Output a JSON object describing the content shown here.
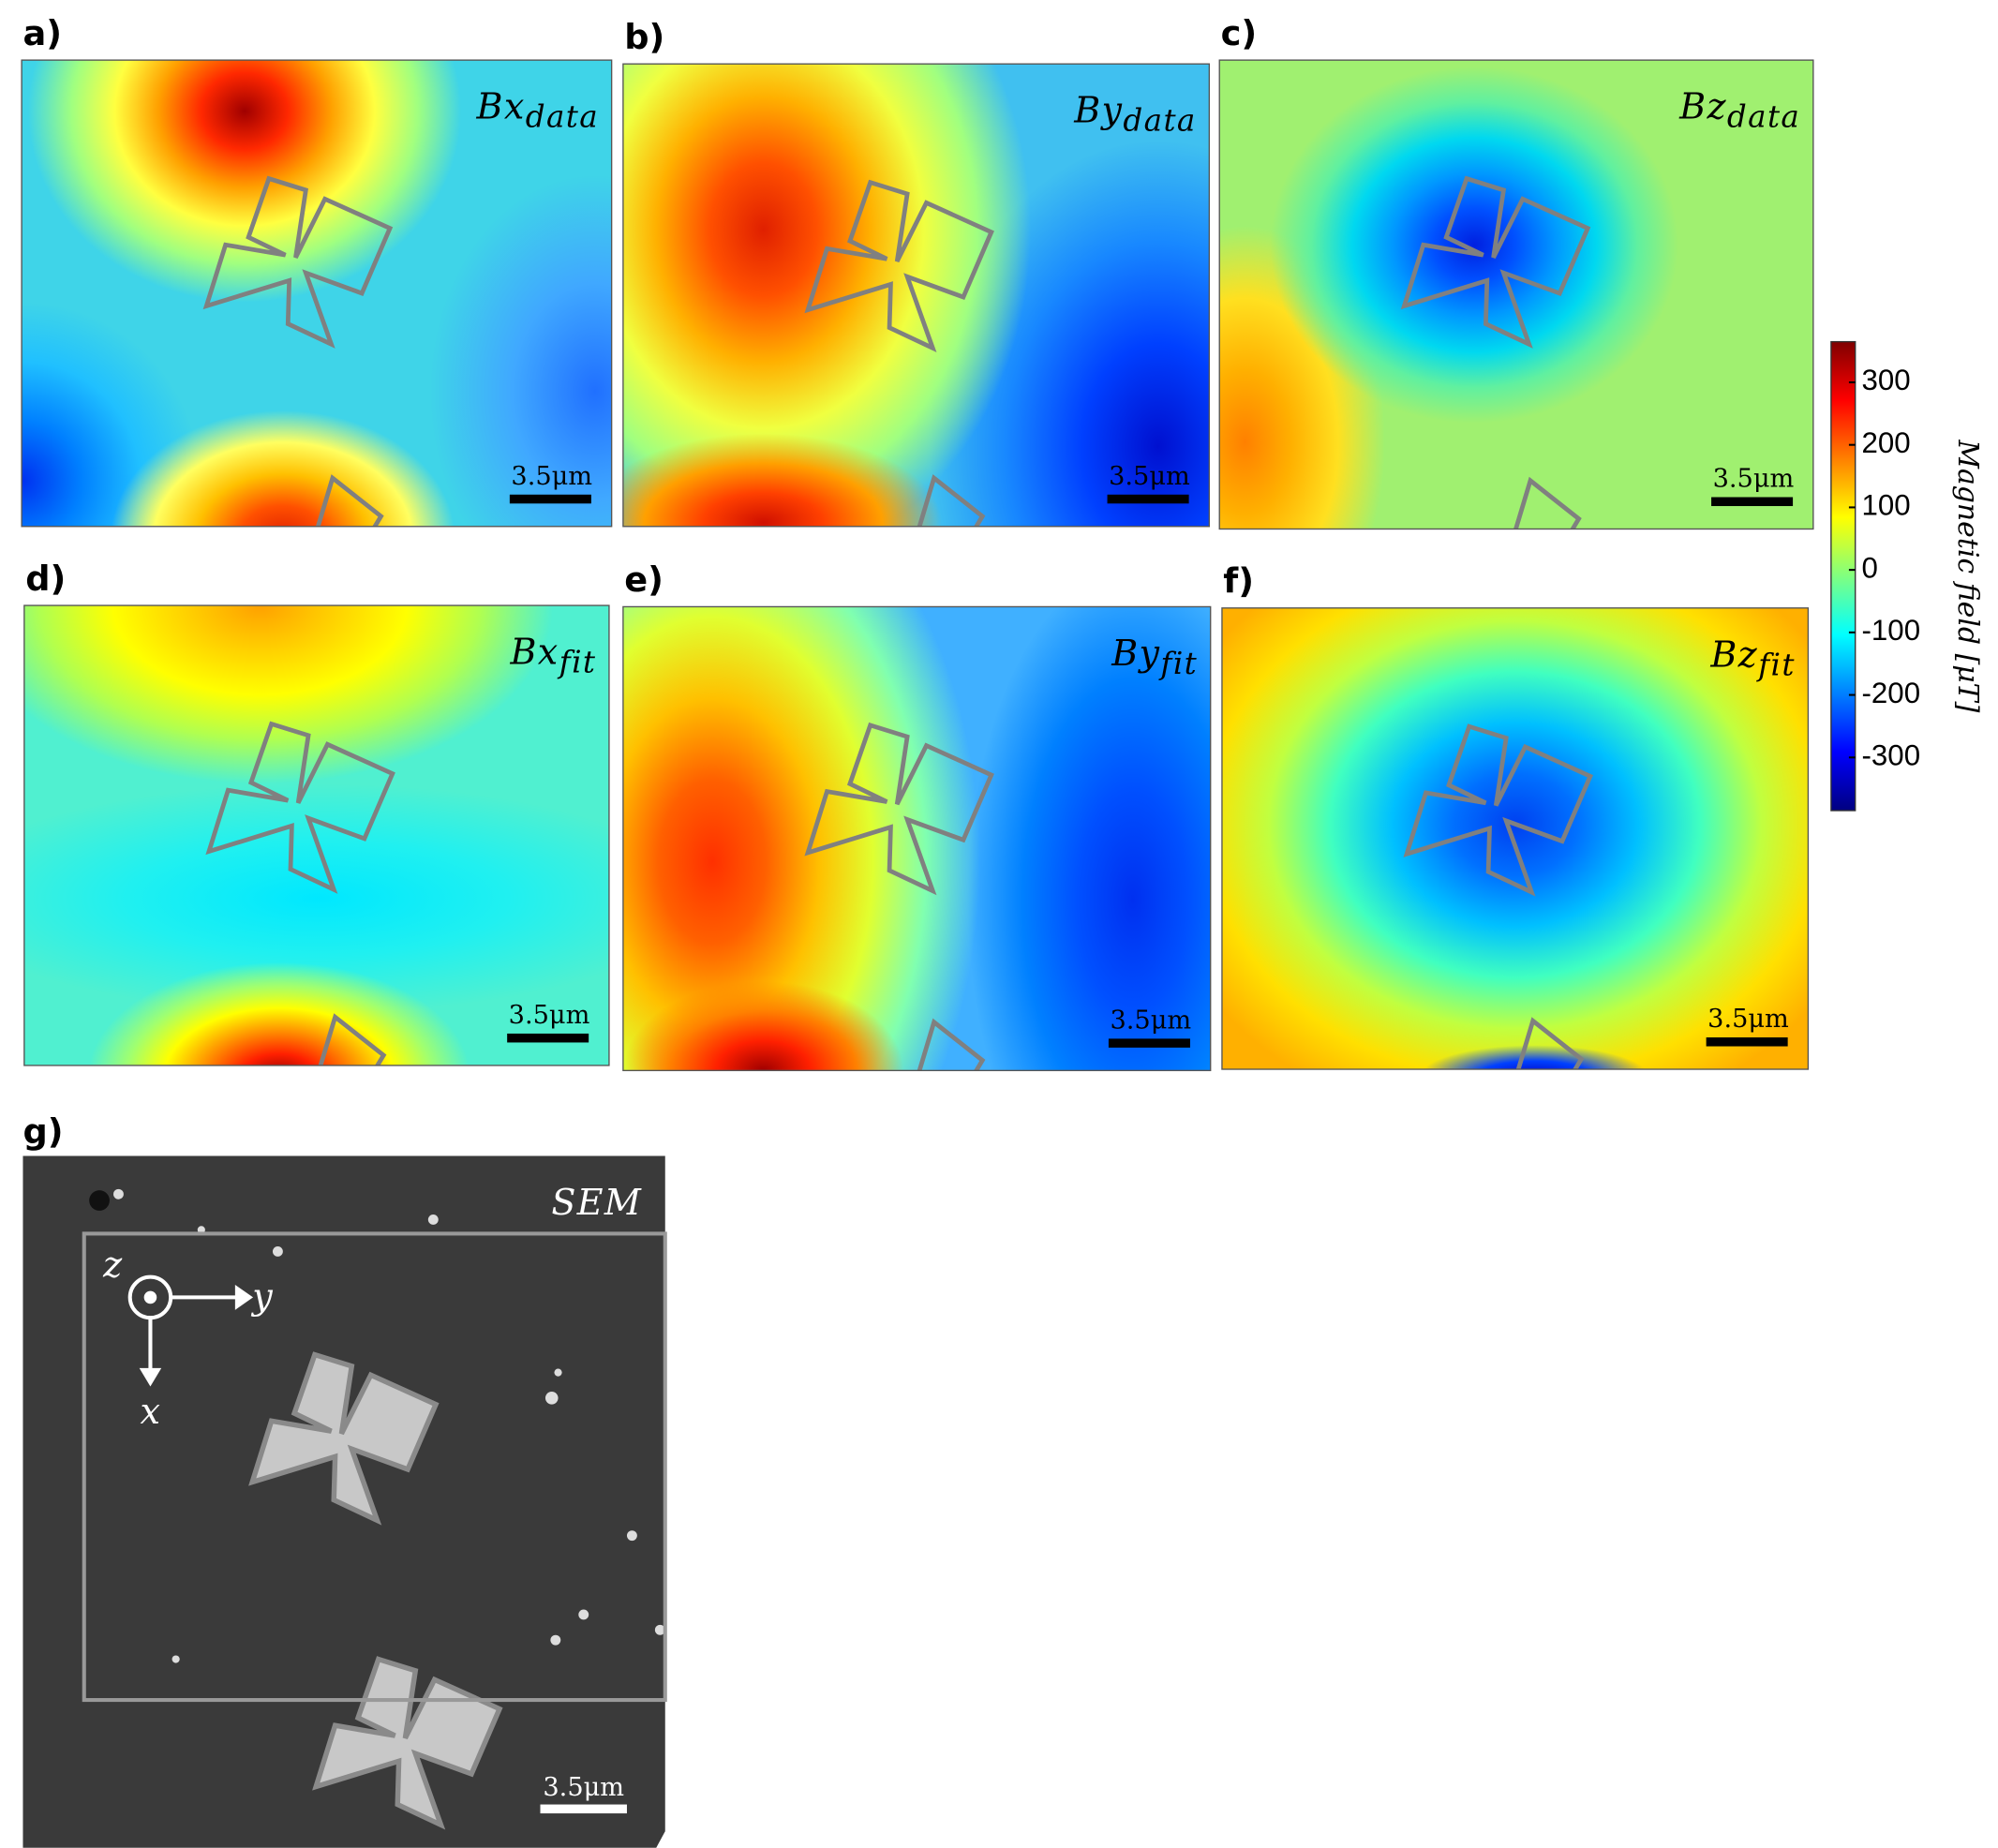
{
  "panels": [
    {
      "label": "a)",
      "title": "Bx",
      "subscript": "data",
      "scale_bar": "3.5μm"
    },
    {
      "label": "b)",
      "title": "By",
      "subscript": "data",
      "scale_bar": "3.5μm"
    },
    {
      "label": "c)",
      "title": "Bz",
      "subscript": "data",
      "scale_bar": "3.5μm"
    },
    {
      "label": "d)",
      "title": "Bx",
      "subscript": "fit",
      "scale_bar": "3.5μm"
    },
    {
      "label": "e)",
      "title": "By",
      "subscript": "fit",
      "scale_bar": "3.5μm"
    },
    {
      "label": "f)",
      "title": "Bz",
      "subscript": "fit",
      "scale_bar": "3.5μm"
    }
  ],
  "colorbar": {
    "label": "Magnetic field [μT]",
    "lim": [
      -385,
      365
    ],
    "ticks": [
      300,
      200,
      100,
      0,
      -100,
      -200,
      -300
    ]
  },
  "sem": {
    "label": "g)",
    "title": "SEM",
    "scale_bar": "3.5μm",
    "axis_z": "z",
    "axis_y": "y",
    "axis_x": "x"
  }
}
